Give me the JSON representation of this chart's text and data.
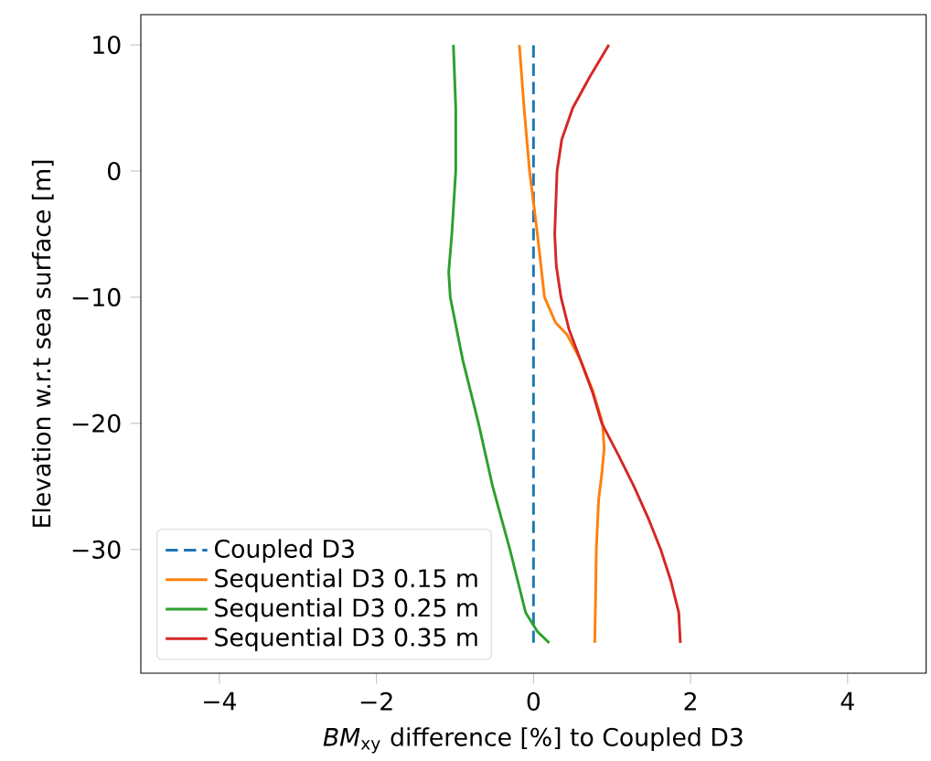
{
  "chart_data": {
    "type": "line",
    "xlabel": "*BM*$_{xy}$ difference [%] to Coupled D3",
    "ylabel": "Elevation w.r.t sea surface [m]",
    "xlim": [
      -5,
      5
    ],
    "ylim": [
      -39.8,
      12.4
    ],
    "xticks": [
      {
        "value": -4,
        "label": "−4"
      },
      {
        "value": -2,
        "label": "−2"
      },
      0,
      2,
      4
    ],
    "yticks": [
      {
        "value": -30,
        "label": "−30"
      },
      {
        "value": -20,
        "label": "−20"
      },
      {
        "value": -10,
        "label": "−10"
      },
      0,
      10
    ],
    "legend": "bottom left",
    "series": [
      {
        "name": "Coupled D3",
        "color": "#1f77b4",
        "line_style": "dashed",
        "x": [
          0,
          0
        ],
        "values": [
          -37.4,
          10
        ]
      },
      {
        "name": "Sequential D3 0.15 m",
        "color": "#ff7f0e",
        "x": [
          -0.18,
          -0.12,
          -0.05,
          0.05,
          0.14,
          0.28,
          0.43,
          0.6,
          0.76,
          0.88,
          0.9,
          0.87,
          0.83,
          0.8,
          0.79,
          0.78
        ],
        "values": [
          10,
          5,
          0,
          -5,
          -10,
          -12,
          -13,
          -15,
          -17.5,
          -20,
          -22,
          -24,
          -26,
          -30,
          -34,
          -37.4
        ]
      },
      {
        "name": "Sequential D3 0.25 m",
        "color": "#2ca02c",
        "x": [
          -1.02,
          -0.99,
          -0.99,
          -1.04,
          -1.08,
          -1.06,
          -0.98,
          -0.9,
          -0.8,
          -0.7,
          -0.52,
          -0.3,
          -0.1,
          0.05,
          0.2
        ],
        "values": [
          10,
          5,
          0,
          -5,
          -8,
          -10,
          -12.5,
          -15,
          -17.5,
          -20,
          -25,
          -30,
          -35,
          -36.5,
          -37.4
        ]
      },
      {
        "name": "Sequential D3 0.35 m",
        "color": "#d62728",
        "x": [
          0.96,
          0.72,
          0.5,
          0.36,
          0.3,
          0.27,
          0.29,
          0.35,
          0.45,
          0.6,
          0.75,
          0.87,
          1.08,
          1.28,
          1.46,
          1.62,
          1.75,
          1.85,
          1.87
        ],
        "values": [
          10,
          7.5,
          5,
          2.5,
          0,
          -5,
          -7.5,
          -10,
          -12.5,
          -15,
          -17.5,
          -20,
          -22.5,
          -25,
          -27.5,
          -30,
          -32.5,
          -35,
          -37.4
        ]
      }
    ]
  }
}
